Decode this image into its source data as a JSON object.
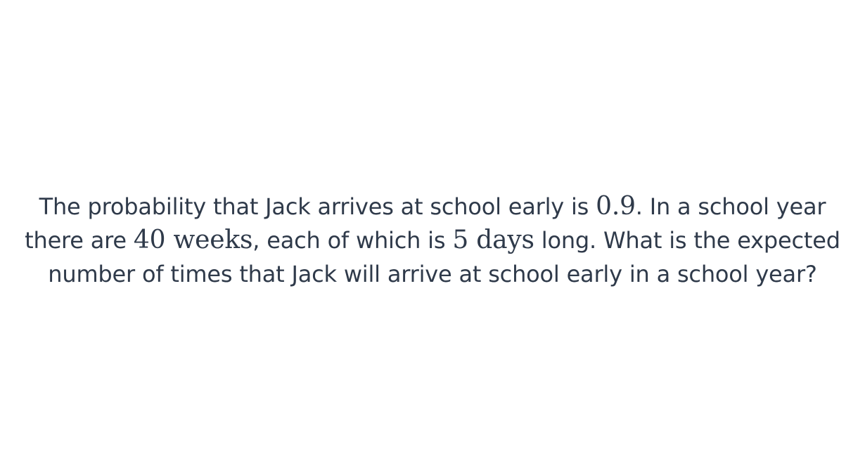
{
  "question": {
    "part1": "The probability that Jack arrives at school early is ",
    "prob": "0.9",
    "part2": ". In a school year there are ",
    "weeks": "40 weeks",
    "part3": ", each of which is ",
    "days": "5 days",
    "part4": " long. What is the expected number of times that Jack will arrive at school early in a school year?"
  }
}
